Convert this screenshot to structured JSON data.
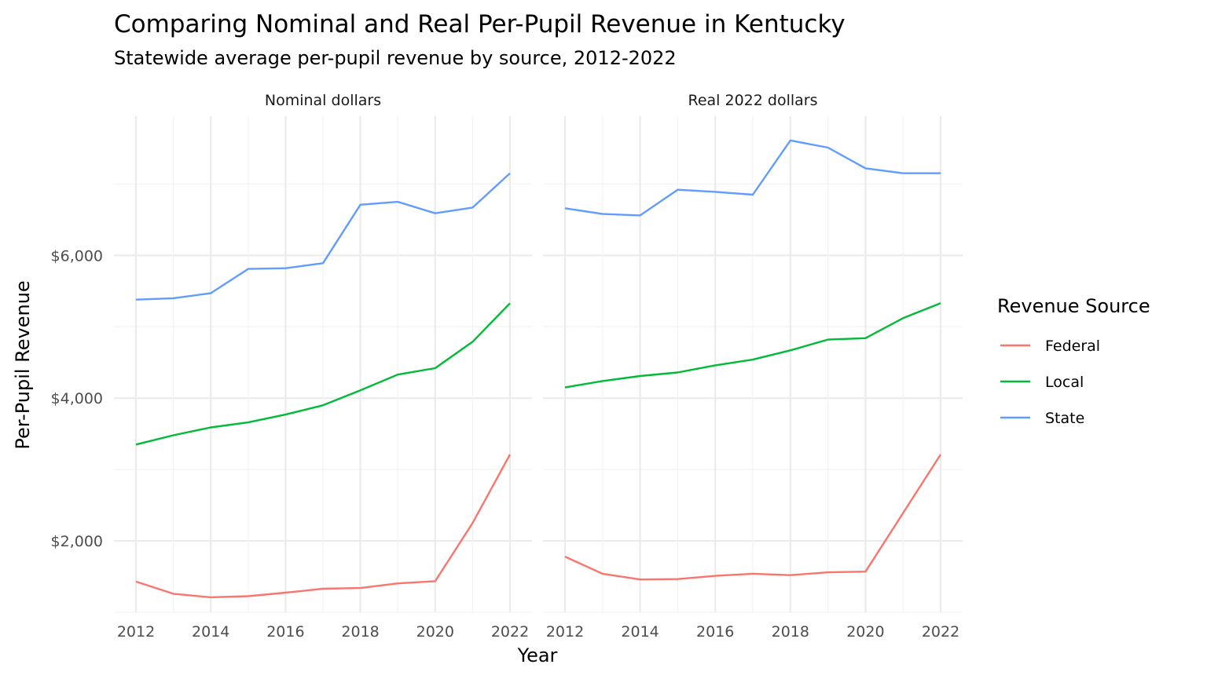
{
  "chart_data": {
    "type": "line",
    "title": "Comparing Nominal and Real Per-Pupil Revenue in Kentucky",
    "subtitle": "Statewide average per-pupil revenue by source, 2012-2022",
    "xlabel": "Year",
    "ylabel": "Per-Pupil Revenue",
    "xlim": [
      2012,
      2022
    ],
    "ylim": [
      1000,
      7950
    ],
    "x_ticks": [
      "2012",
      "2014",
      "2016",
      "2018",
      "2020",
      "2022"
    ],
    "y_ticks": [
      "$2,000",
      "$4,000",
      "$6,000"
    ],
    "grid": true,
    "legend": {
      "title": "Revenue Source",
      "position": "right",
      "entries": [
        {
          "name": "Federal",
          "color": "#F8766D"
        },
        {
          "name": "Local",
          "color": "#00BA38"
        },
        {
          "name": "State",
          "color": "#619CFF"
        }
      ]
    },
    "x": [
      2012,
      2013,
      2014,
      2015,
      2016,
      2017,
      2018,
      2019,
      2020,
      2021,
      2022
    ],
    "panels": [
      {
        "label": "Nominal dollars",
        "series": [
          {
            "name": "Federal",
            "color": "#F8766D",
            "values": [
              1430,
              1260,
              1210,
              1225,
              1275,
              1330,
              1340,
              1405,
              1435,
              2250,
              3210
            ]
          },
          {
            "name": "Local",
            "color": "#00BA38",
            "values": [
              3350,
              3480,
              3590,
              3660,
              3770,
              3900,
              4110,
              4330,
              4420,
              4790,
              5330
            ]
          },
          {
            "name": "State",
            "color": "#619CFF",
            "values": [
              5380,
              5400,
              5470,
              5810,
              5820,
              5890,
              6710,
              6750,
              6590,
              6670,
              7150
            ]
          }
        ]
      },
      {
        "label": "Real 2022 dollars",
        "series": [
          {
            "name": "Federal",
            "color": "#F8766D",
            "values": [
              1780,
              1540,
              1460,
              1465,
              1510,
              1540,
              1520,
              1560,
              1570,
              2390,
              3210
            ]
          },
          {
            "name": "Local",
            "color": "#00BA38",
            "values": [
              4150,
              4240,
              4310,
              4360,
              4460,
              4540,
              4670,
              4820,
              4840,
              5120,
              5330
            ]
          },
          {
            "name": "State",
            "color": "#619CFF",
            "values": [
              6660,
              6580,
              6560,
              6920,
              6890,
              6850,
              7610,
              7510,
              7220,
              7150,
              7150
            ]
          }
        ]
      }
    ]
  }
}
